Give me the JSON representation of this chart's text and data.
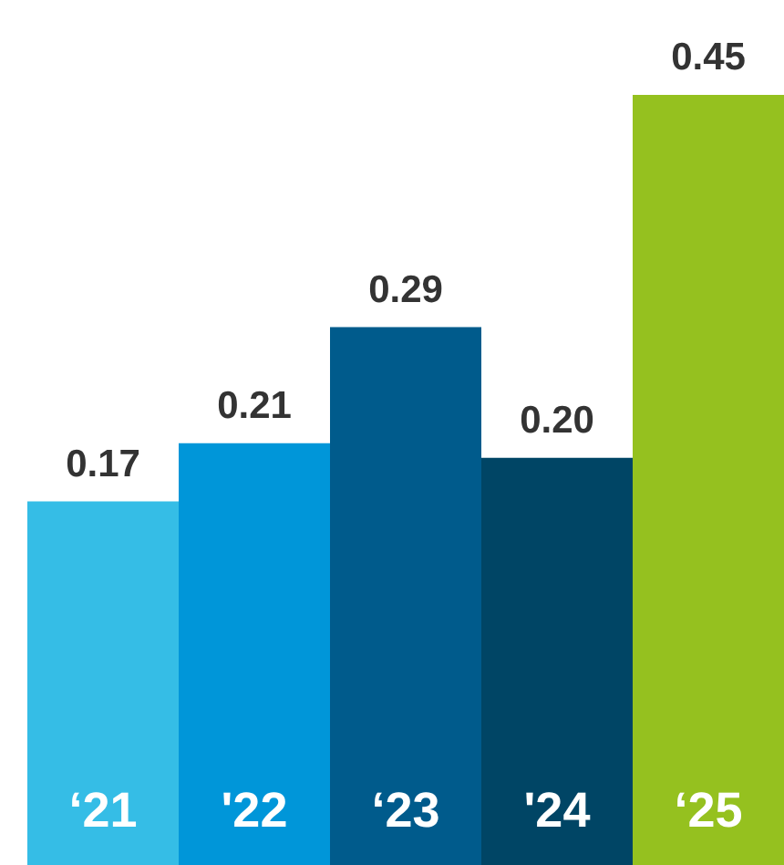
{
  "chart_data": {
    "type": "bar",
    "categories": [
      "‘21",
      "'22",
      "‘23",
      "'24",
      "‘25"
    ],
    "values": [
      0.17,
      0.21,
      0.29,
      0.2,
      0.45
    ],
    "colors": [
      "#35bde6",
      "#0096d9",
      "#005b8c",
      "#004565",
      "#95c11f"
    ],
    "value_labels": [
      "0.17",
      "0.21",
      "0.29",
      "0.20",
      "0.45"
    ]
  }
}
